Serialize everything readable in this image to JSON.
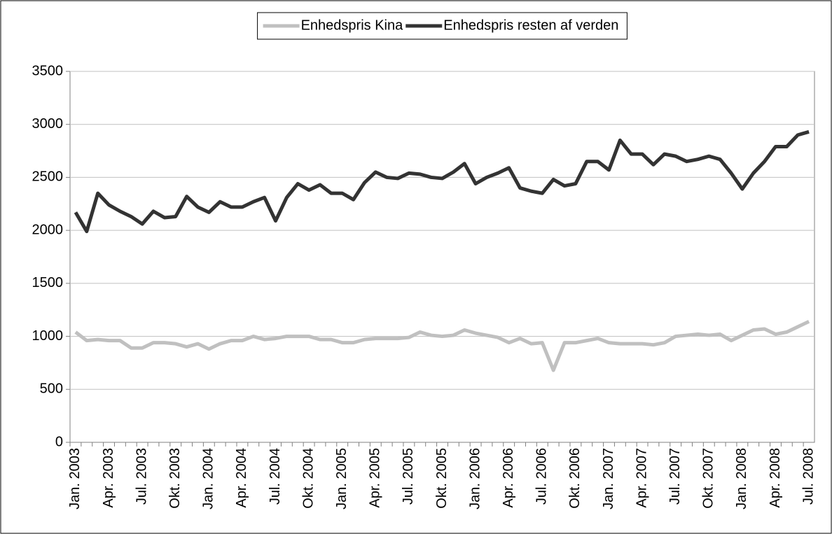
{
  "chart_data": {
    "type": "line",
    "categories": [
      "Jan. 2003",
      null,
      null,
      "Apr. 2003",
      null,
      null,
      "Jul. 2003",
      null,
      null,
      "Okt. 2003",
      null,
      null,
      "Jan. 2004",
      null,
      null,
      "Apr. 2004",
      null,
      null,
      "Jul. 2004",
      null,
      null,
      "Okt. 2004",
      null,
      null,
      "Jan. 2005",
      null,
      null,
      "Apr. 2005",
      null,
      null,
      "Jul. 2005",
      null,
      null,
      "Okt. 2005",
      null,
      null,
      "Jan. 2006",
      null,
      null,
      "Apr. 2006",
      null,
      null,
      "Jul. 2006",
      null,
      null,
      "Okt. 2006",
      null,
      null,
      "Jan. 2007",
      null,
      null,
      "Apr. 2007",
      null,
      null,
      "Jul. 2007",
      null,
      null,
      "Okt. 2007",
      null,
      null,
      "Jan. 2008",
      null,
      null,
      "Apr. 2008",
      null,
      null,
      "Jul. 2008"
    ],
    "series": [
      {
        "name": "Enhedspris Kina",
        "color": "#c0c0c0",
        "values": [
          1040,
          960,
          970,
          960,
          960,
          890,
          890,
          940,
          940,
          930,
          900,
          930,
          880,
          930,
          960,
          960,
          1000,
          970,
          980,
          1000,
          1000,
          1000,
          970,
          970,
          940,
          940,
          970,
          980,
          980,
          980,
          990,
          1040,
          1010,
          1000,
          1010,
          1060,
          1030,
          1010,
          990,
          940,
          980,
          930,
          940,
          680,
          940,
          940,
          960,
          980,
          940,
          930,
          930,
          930,
          920,
          940,
          1000,
          1010,
          1020,
          1010,
          1020,
          960,
          1010,
          1060,
          1070,
          1020,
          1040,
          1090,
          1140
        ]
      },
      {
        "name": "Enhedspris resten af verden",
        "color": "#333333",
        "values": [
          2170,
          1990,
          2350,
          2240,
          2180,
          2130,
          2060,
          2180,
          2120,
          2130,
          2320,
          2220,
          2170,
          2270,
          2220,
          2220,
          2270,
          2310,
          2090,
          2310,
          2440,
          2380,
          2430,
          2350,
          2350,
          2290,
          2450,
          2550,
          2500,
          2490,
          2540,
          2530,
          2500,
          2490,
          2550,
          2630,
          2440,
          2500,
          2540,
          2590,
          2400,
          2370,
          2350,
          2480,
          2420,
          2440,
          2650,
          2650,
          2570,
          2850,
          2720,
          2720,
          2620,
          2720,
          2700,
          2650,
          2670,
          2700,
          2670,
          2540,
          2390,
          2540,
          2650,
          2790,
          2790,
          2900,
          2930
        ]
      }
    ],
    "ylim": [
      0,
      3500
    ],
    "yticks": [
      0,
      500,
      1000,
      1500,
      2000,
      2500,
      3000,
      3500
    ],
    "grid": true,
    "legend": "top"
  }
}
